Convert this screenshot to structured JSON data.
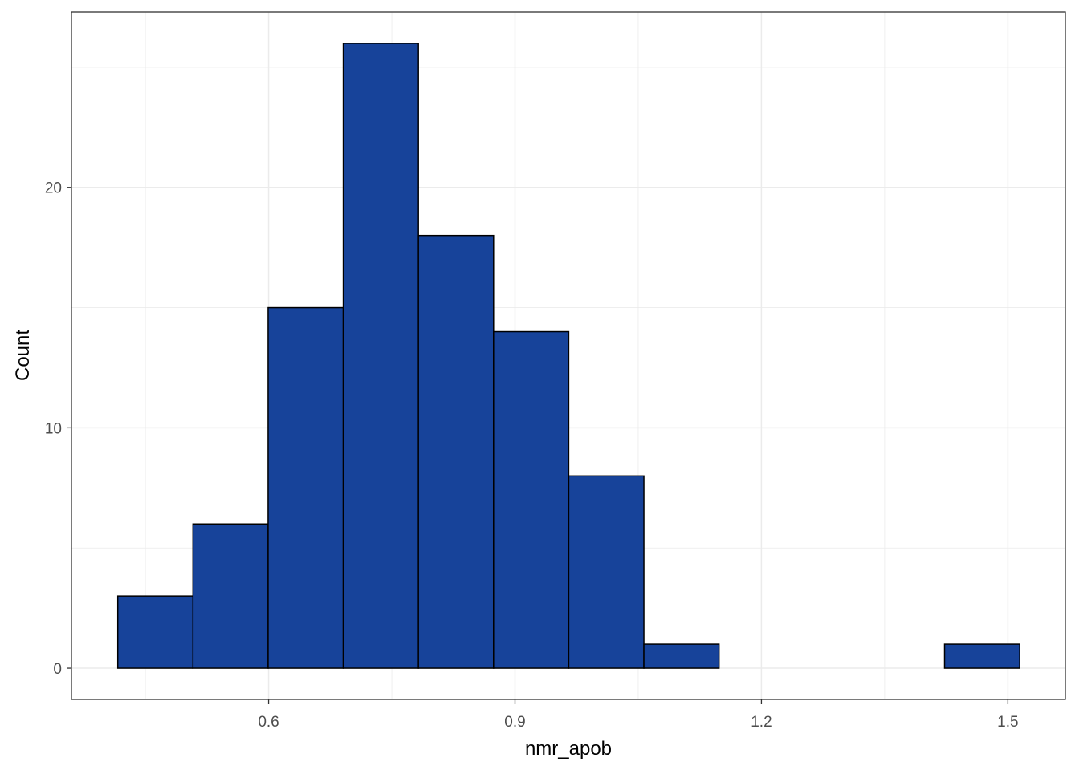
{
  "chart_data": {
    "type": "bar",
    "subtype": "histogram",
    "xlabel": "nmr_apob",
    "ylabel": "Count",
    "bin_edges": [
      0.4164,
      0.5079,
      0.5994,
      0.6909,
      0.7824,
      0.8739,
      0.9654,
      1.0569,
      1.1484,
      1.2399,
      1.3314,
      1.4229,
      1.5144
    ],
    "counts": [
      3,
      6,
      15,
      26,
      18,
      14,
      8,
      1,
      0,
      0,
      0,
      1
    ],
    "xlim": [
      0.36,
      1.57
    ],
    "ylim": [
      -1.3,
      27.3
    ],
    "xticks": [
      0.6,
      0.9,
      1.2,
      1.5
    ],
    "xtick_labels": [
      "0.6",
      "0.9",
      "1.2",
      "1.5"
    ],
    "yticks": [
      0,
      10,
      20
    ],
    "ytick_labels": [
      "0",
      "10",
      "20"
    ],
    "x_minor_ticks": [
      0.45,
      0.75,
      1.05,
      1.35
    ],
    "y_minor_ticks": [
      5,
      15,
      25
    ],
    "grid": true,
    "bar_color": "#17439A",
    "bar_outline_color": "#000000",
    "panel_border_color": "#333333",
    "grid_color": "#EBEBEB"
  }
}
